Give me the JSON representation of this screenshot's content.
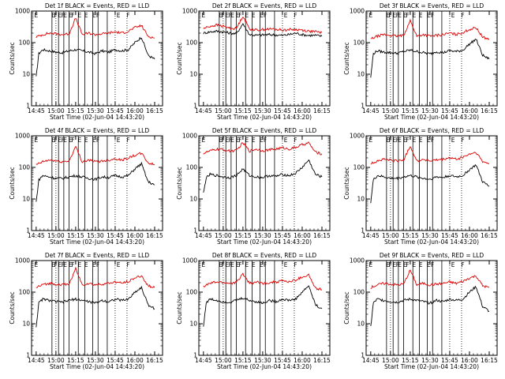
{
  "figure": {
    "xlabel": "Start Time (02-Jun-04 14:43:20)",
    "ylabel": "Counts/sec",
    "x_tick_labels": [
      "14:45",
      "15:00",
      "15:15",
      "15:30",
      "15:45",
      "16:00",
      "16:15"
    ],
    "y_tick_labels": [
      "1",
      "10",
      "100",
      "1000"
    ],
    "marker_letter_E": "E",
    "marker_letter_F": "F",
    "colors": {
      "events": "#000000",
      "lld": "#e00000",
      "axes": "#000000"
    }
  },
  "chart_data": [
    {
      "type": "line",
      "title": "Det 1f BLACK = Events, RED = LLD",
      "xlabel": "Start Time (02-Jun-04 14:43:20)",
      "ylabel": "Counts/sec",
      "x_unit": "minutes after 14:45",
      "xlim": [
        0,
        96
      ],
      "ylim": [
        1,
        1000
      ],
      "yscale": "log",
      "series": [
        {
          "name": "Events",
          "color": "#000000",
          "x": [
            0,
            2,
            5,
            10,
            15,
            20,
            25,
            30,
            35,
            40,
            45,
            50,
            55,
            60,
            65,
            70,
            75,
            80,
            85,
            90
          ],
          "y": [
            8,
            45,
            60,
            55,
            50,
            48,
            55,
            60,
            55,
            50,
            45,
            55,
            50,
            60,
            55,
            60,
            100,
            150,
            40,
            30
          ]
        },
        {
          "name": "LLD",
          "color": "#e00000",
          "x": [
            0,
            5,
            10,
            15,
            20,
            25,
            30,
            35,
            40,
            45,
            50,
            55,
            60,
            65,
            70,
            75,
            80,
            85,
            90
          ],
          "y": [
            150,
            180,
            200,
            190,
            180,
            190,
            600,
            180,
            200,
            180,
            190,
            200,
            220,
            200,
            230,
            300,
            350,
            160,
            140
          ]
        }
      ]
    },
    {
      "type": "line",
      "title": "Det 2f BLACK = Events, RED = LLD",
      "xlabel": "Start Time (02-Jun-04 14:43:20)",
      "ylabel": "Counts/sec",
      "x_unit": "minutes after 14:45",
      "xlim": [
        0,
        96
      ],
      "ylim": [
        1,
        1000
      ],
      "yscale": "log",
      "series": [
        {
          "name": "Events",
          "color": "#000000",
          "x": [
            0,
            5,
            10,
            15,
            20,
            25,
            30,
            35,
            40,
            45,
            50,
            55,
            60,
            65,
            70,
            75,
            80,
            85,
            90
          ],
          "y": [
            200,
            220,
            230,
            220,
            200,
            190,
            400,
            180,
            170,
            175,
            180,
            175,
            170,
            180,
            200,
            180,
            170,
            170,
            160
          ]
        },
        {
          "name": "LLD",
          "color": "#e00000",
          "x": [
            0,
            5,
            10,
            15,
            20,
            25,
            30,
            35,
            40,
            45,
            50,
            55,
            60,
            65,
            70,
            75,
            80,
            85,
            90
          ],
          "y": [
            280,
            330,
            360,
            330,
            290,
            280,
            700,
            270,
            250,
            260,
            270,
            265,
            250,
            260,
            260,
            250,
            230,
            220,
            210
          ]
        }
      ]
    },
    {
      "type": "line",
      "title": "Det 3f BLACK = Events, RED = LLD",
      "xlabel": "Start Time (02-Jun-04 14:43:20)",
      "ylabel": "Counts/sec",
      "x_unit": "minutes after 14:45",
      "xlim": [
        0,
        96
      ],
      "ylim": [
        1,
        1000
      ],
      "yscale": "log",
      "series": [
        {
          "name": "Events",
          "color": "#000000",
          "x": [
            0,
            2,
            5,
            10,
            15,
            20,
            25,
            30,
            35,
            40,
            45,
            50,
            55,
            60,
            65,
            70,
            75,
            80,
            85,
            90
          ],
          "y": [
            8,
            45,
            55,
            50,
            48,
            46,
            52,
            58,
            52,
            48,
            44,
            52,
            48,
            56,
            52,
            58,
            90,
            130,
            40,
            30
          ]
        },
        {
          "name": "LLD",
          "color": "#e00000",
          "x": [
            0,
            5,
            10,
            15,
            20,
            25,
            30,
            35,
            40,
            45,
            50,
            55,
            60,
            65,
            70,
            75,
            80,
            85,
            90
          ],
          "y": [
            130,
            160,
            180,
            170,
            160,
            170,
            500,
            160,
            180,
            160,
            170,
            180,
            200,
            180,
            210,
            260,
            300,
            150,
            130
          ]
        }
      ]
    },
    {
      "type": "line",
      "title": "Det 4f BLACK = Events, RED = LLD",
      "xlabel": "Start Time (02-Jun-04 14:43:20)",
      "ylabel": "Counts/sec",
      "x_unit": "minutes after 14:45",
      "xlim": [
        0,
        96
      ],
      "ylim": [
        1,
        1000
      ],
      "yscale": "log",
      "series": [
        {
          "name": "Events",
          "color": "#000000",
          "x": [
            0,
            2,
            5,
            10,
            15,
            20,
            25,
            30,
            35,
            40,
            45,
            50,
            55,
            60,
            65,
            70,
            75,
            80,
            85,
            90
          ],
          "y": [
            8,
            40,
            55,
            50,
            45,
            45,
            50,
            55,
            50,
            45,
            42,
            50,
            48,
            55,
            50,
            55,
            90,
            130,
            35,
            28
          ]
        },
        {
          "name": "LLD",
          "color": "#e00000",
          "x": [
            0,
            5,
            10,
            15,
            20,
            25,
            30,
            35,
            40,
            45,
            50,
            55,
            60,
            65,
            70,
            75,
            80,
            85,
            90
          ],
          "y": [
            120,
            150,
            170,
            160,
            150,
            160,
            450,
            150,
            170,
            150,
            160,
            170,
            190,
            170,
            200,
            240,
            280,
            140,
            120
          ]
        }
      ]
    },
    {
      "type": "line",
      "title": "Det 5f BLACK = Events, RED = LLD",
      "xlabel": "Start Time (02-Jun-04 14:43:20)",
      "ylabel": "Counts/sec",
      "x_unit": "minutes after 14:45",
      "xlim": [
        0,
        96
      ],
      "ylim": [
        1,
        1000
      ],
      "yscale": "log",
      "series": [
        {
          "name": "Events",
          "color": "#000000",
          "x": [
            0,
            2,
            5,
            10,
            15,
            20,
            25,
            30,
            35,
            40,
            45,
            50,
            55,
            60,
            65,
            70,
            75,
            80,
            85,
            90
          ],
          "y": [
            15,
            45,
            60,
            55,
            50,
            48,
            55,
            90,
            55,
            50,
            48,
            55,
            52,
            60,
            55,
            65,
            100,
            170,
            60,
            50
          ]
        },
        {
          "name": "LLD",
          "color": "#e00000",
          "x": [
            0,
            5,
            10,
            15,
            20,
            25,
            30,
            35,
            40,
            45,
            50,
            55,
            60,
            65,
            70,
            75,
            80,
            85,
            90
          ],
          "y": [
            280,
            330,
            380,
            360,
            330,
            340,
            600,
            330,
            380,
            340,
            360,
            380,
            420,
            380,
            430,
            520,
            600,
            300,
            270
          ]
        }
      ]
    },
    {
      "type": "line",
      "title": "Det 6f BLACK = Events, RED = LLD",
      "xlabel": "Start Time (02-Jun-04 14:43:20)",
      "ylabel": "Counts/sec",
      "x_unit": "minutes after 14:45",
      "xlim": [
        0,
        96
      ],
      "ylim": [
        1,
        1000
      ],
      "yscale": "log",
      "series": [
        {
          "name": "Events",
          "color": "#000000",
          "x": [
            0,
            2,
            5,
            10,
            15,
            20,
            25,
            30,
            35,
            40,
            45,
            50,
            55,
            60,
            65,
            70,
            75,
            80,
            85,
            90
          ],
          "y": [
            8,
            40,
            55,
            50,
            45,
            45,
            50,
            55,
            50,
            45,
            42,
            50,
            48,
            55,
            50,
            55,
            85,
            120,
            35,
            25
          ]
        },
        {
          "name": "LLD",
          "color": "#e00000",
          "x": [
            0,
            5,
            10,
            15,
            20,
            25,
            30,
            35,
            40,
            45,
            50,
            55,
            60,
            65,
            70,
            75,
            80,
            85,
            90
          ],
          "y": [
            130,
            160,
            180,
            170,
            160,
            170,
            480,
            160,
            180,
            160,
            170,
            180,
            200,
            180,
            210,
            260,
            300,
            150,
            130
          ]
        }
      ]
    },
    {
      "type": "line",
      "title": "Det 7f BLACK = Events, RED = LLD",
      "xlabel": "Start Time (02-Jun-04 14:43:20)",
      "ylabel": "Counts/sec",
      "x_unit": "minutes after 14:45",
      "xlim": [
        0,
        96
      ],
      "ylim": [
        1,
        1000
      ],
      "yscale": "log",
      "series": [
        {
          "name": "Events",
          "color": "#000000",
          "x": [
            0,
            2,
            5,
            10,
            15,
            20,
            25,
            30,
            35,
            40,
            45,
            50,
            55,
            60,
            65,
            70,
            75,
            80,
            85,
            90
          ],
          "y": [
            8,
            45,
            60,
            55,
            50,
            48,
            55,
            60,
            55,
            50,
            45,
            55,
            50,
            60,
            55,
            60,
            100,
            140,
            40,
            30
          ]
        },
        {
          "name": "LLD",
          "color": "#e00000",
          "x": [
            0,
            5,
            10,
            15,
            20,
            25,
            30,
            35,
            40,
            45,
            50,
            55,
            60,
            65,
            70,
            75,
            80,
            85,
            90
          ],
          "y": [
            140,
            170,
            190,
            180,
            170,
            180,
            550,
            170,
            190,
            170,
            180,
            190,
            210,
            190,
            220,
            280,
            330,
            160,
            140
          ]
        }
      ]
    },
    {
      "type": "line",
      "title": "Det 8f BLACK = Events, RED = LLD",
      "xlabel": "Start Time (02-Jun-04 14:43:20)",
      "ylabel": "Counts/sec",
      "x_unit": "minutes after 14:45",
      "xlim": [
        0,
        96
      ],
      "ylim": [
        1,
        1000
      ],
      "yscale": "log",
      "series": [
        {
          "name": "Events",
          "color": "#000000",
          "x": [
            0,
            2,
            5,
            10,
            15,
            20,
            25,
            30,
            35,
            40,
            45,
            50,
            55,
            60,
            65,
            70,
            75,
            80,
            85,
            90
          ],
          "y": [
            8,
            45,
            60,
            55,
            50,
            48,
            55,
            65,
            55,
            50,
            45,
            55,
            50,
            60,
            55,
            60,
            100,
            160,
            40,
            30
          ]
        },
        {
          "name": "LLD",
          "color": "#e00000",
          "x": [
            0,
            5,
            10,
            15,
            20,
            25,
            30,
            35,
            40,
            45,
            50,
            55,
            60,
            65,
            70,
            75,
            80,
            85,
            90
          ],
          "y": [
            150,
            190,
            210,
            200,
            190,
            200,
            380,
            190,
            210,
            190,
            200,
            210,
            230,
            210,
            240,
            300,
            350,
            130,
            120
          ]
        }
      ]
    },
    {
      "type": "line",
      "title": "Det 9f BLACK = Events, RED = LLD",
      "xlabel": "Start Time (02-Jun-04 14:43:20)",
      "ylabel": "Counts/sec",
      "x_unit": "minutes after 14:45",
      "xlim": [
        0,
        96
      ],
      "ylim": [
        1,
        1000
      ],
      "yscale": "log",
      "series": [
        {
          "name": "Events",
          "color": "#000000",
          "x": [
            0,
            2,
            5,
            10,
            15,
            20,
            25,
            30,
            35,
            40,
            45,
            50,
            55,
            60,
            65,
            70,
            75,
            80,
            85,
            90
          ],
          "y": [
            8,
            45,
            60,
            55,
            50,
            48,
            55,
            60,
            55,
            50,
            45,
            55,
            50,
            60,
            55,
            60,
            100,
            150,
            35,
            25
          ]
        },
        {
          "name": "LLD",
          "color": "#e00000",
          "x": [
            0,
            5,
            10,
            15,
            20,
            25,
            30,
            35,
            40,
            45,
            50,
            55,
            60,
            65,
            70,
            75,
            80,
            85,
            90
          ],
          "y": [
            140,
            170,
            190,
            180,
            170,
            180,
            500,
            170,
            190,
            170,
            180,
            190,
            210,
            190,
            220,
            280,
            330,
            160,
            140
          ]
        }
      ]
    }
  ]
}
